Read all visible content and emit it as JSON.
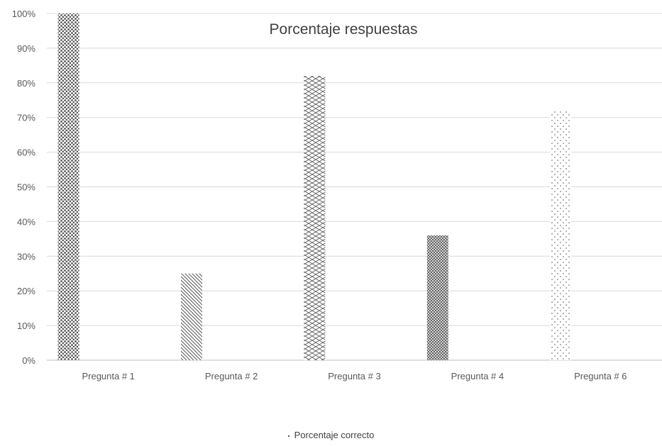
{
  "chart_data": {
    "type": "bar",
    "title": "Porcentaje respuestas",
    "xlabel": "",
    "ylabel": "",
    "categories": [
      "Pregunta # 1",
      "Pregunta # 2",
      "Pregunta # 3",
      "Pregunta # 4",
      "Pregunta # 6"
    ],
    "series": [
      {
        "name": "Porcentaje correcto",
        "values": [
          1.0,
          0.25,
          0.82,
          0.36,
          0.72
        ],
        "patterns": [
          "large-dots",
          "diagonal-stripes",
          "zigzag-weave",
          "crosshatch",
          "small-dots"
        ]
      }
    ],
    "ylim": [
      0,
      1
    ],
    "yticks": [
      0,
      0.1,
      0.2,
      0.3,
      0.4,
      0.5,
      0.6,
      0.7,
      0.8,
      0.9,
      1.0
    ],
    "ytick_labels": [
      "0%",
      "10%",
      "20%",
      "30%",
      "40%",
      "50%",
      "60%",
      "70%",
      "80%",
      "90%",
      "100%"
    ],
    "grid": true,
    "legend_position": "bottom-center",
    "colors": {
      "bar_ink": "#595959",
      "gridline": "#d9d9d9",
      "axis_line": "#bfbfbf",
      "text": "#595959",
      "title_text": "#404040"
    }
  }
}
